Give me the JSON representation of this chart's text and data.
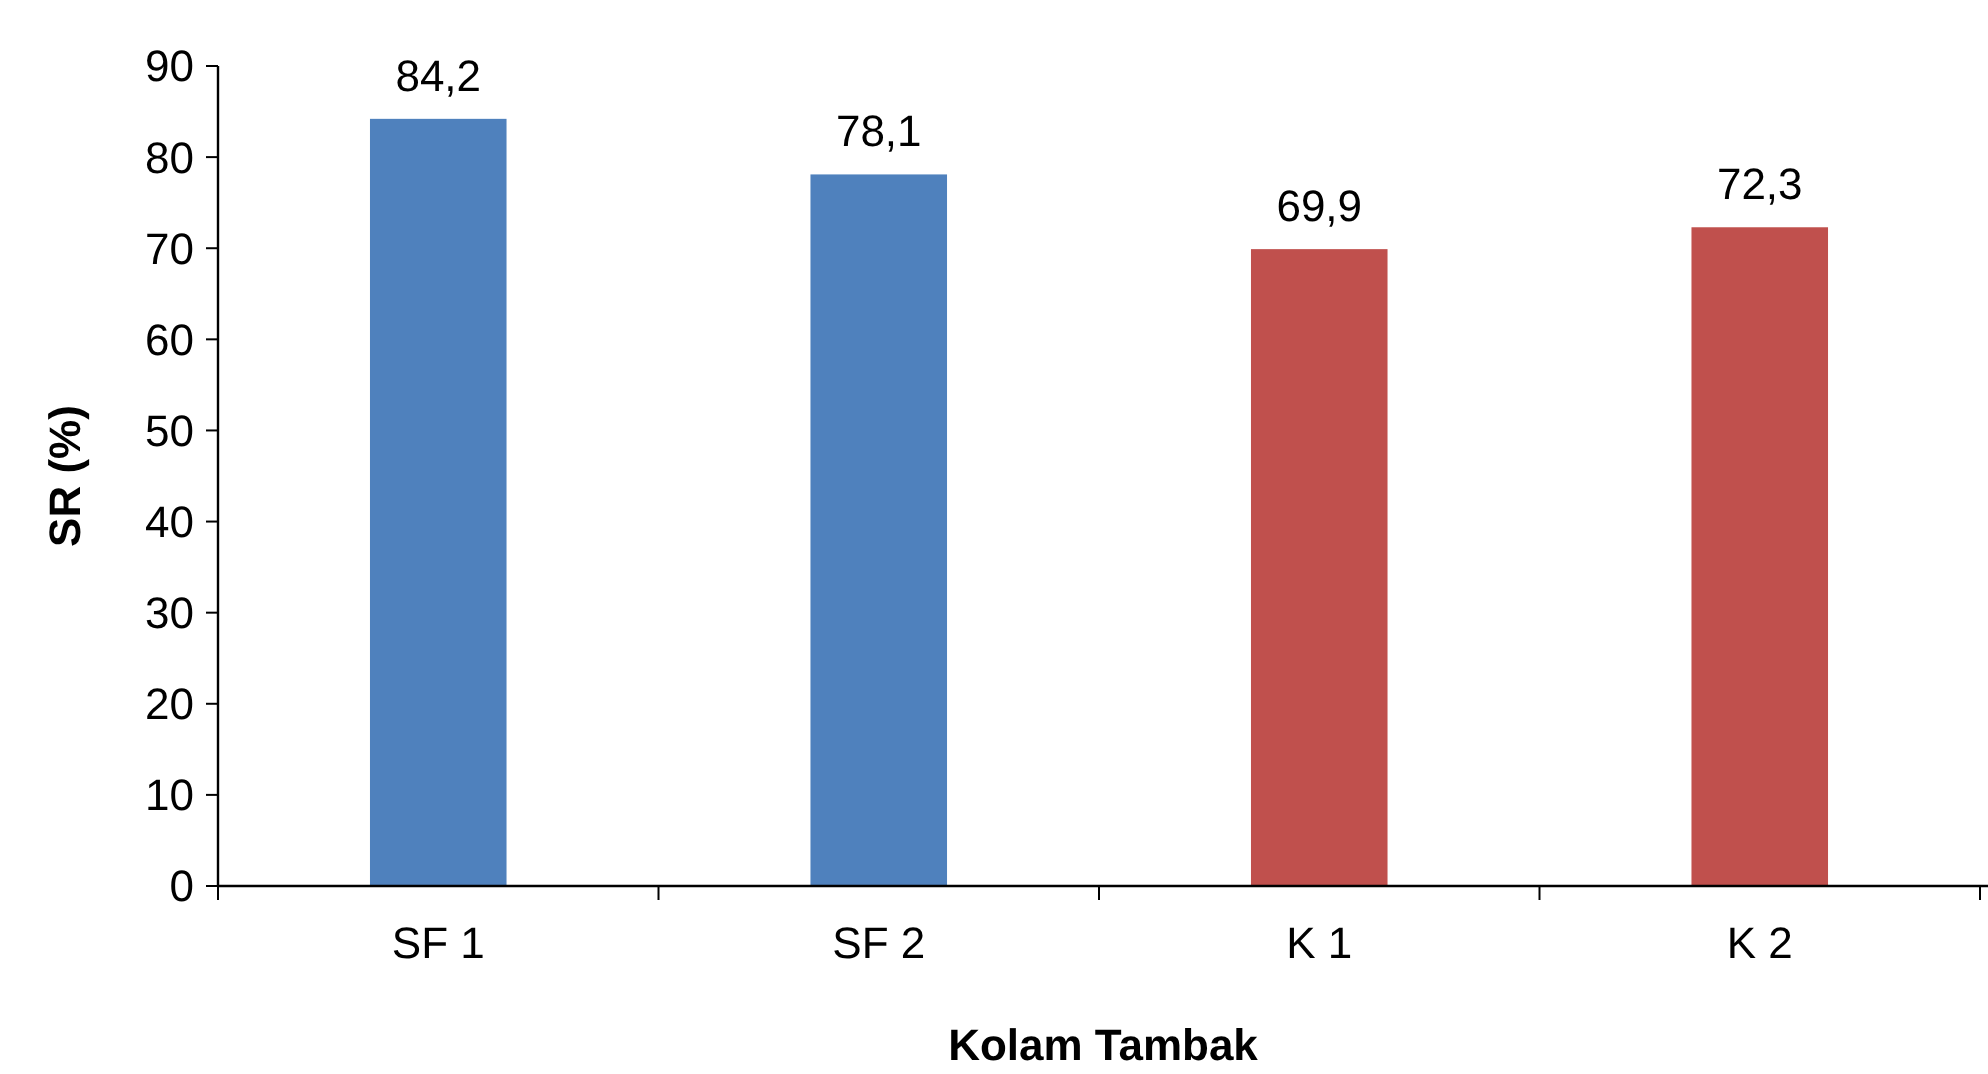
{
  "chart_data": {
    "type": "bar",
    "xlabel": "Kolam Tambak",
    "ylabel": "SR (%)",
    "categories": [
      "SF 1",
      "SF 2",
      "K 1",
      "K 2"
    ],
    "values": [
      84.2,
      78.1,
      69.9,
      72.3
    ],
    "colors": [
      "#4f81bd",
      "#4f81bd",
      "#c0504d",
      "#c0504d"
    ],
    "value_labels": [
      "84,2",
      "78,1",
      "69,9",
      "72,3"
    ],
    "ylim": [
      0,
      90
    ],
    "yticks": [
      0,
      10,
      20,
      30,
      40,
      50,
      60,
      70,
      80,
      90
    ],
    "grid": false
  }
}
